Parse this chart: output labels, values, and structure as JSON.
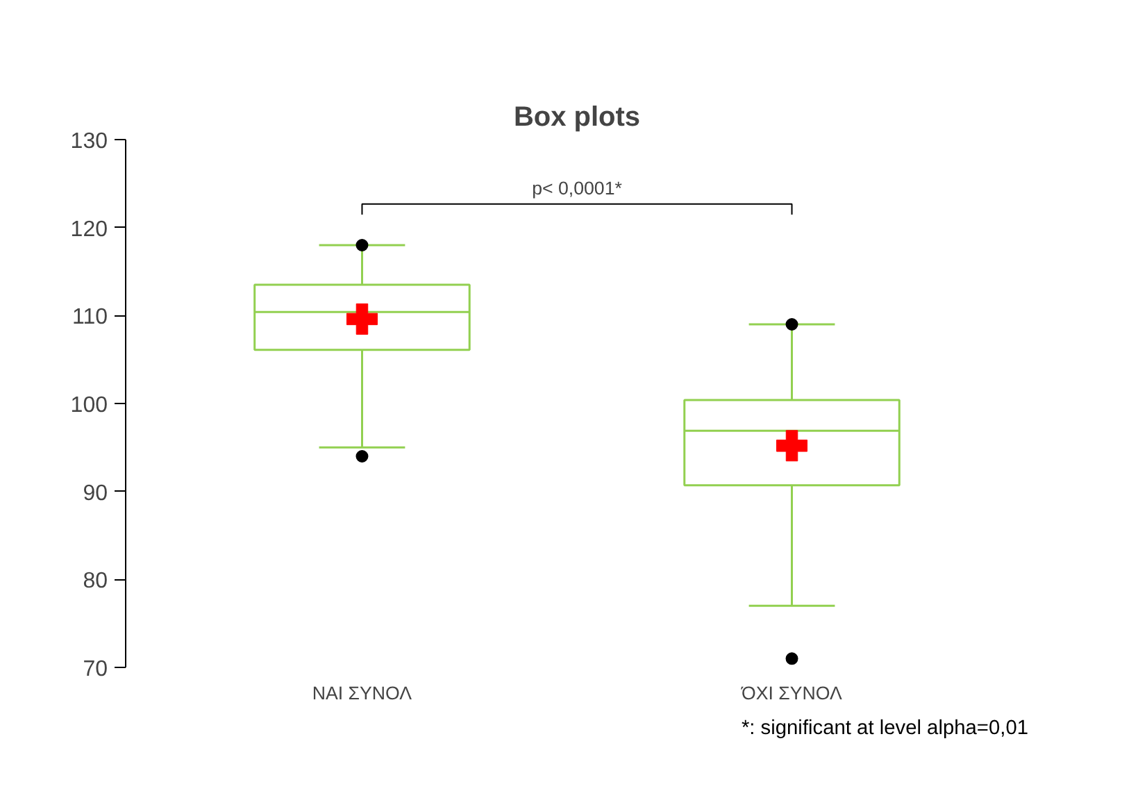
{
  "chart_data": {
    "type": "box",
    "title": "Box plots",
    "categories": [
      "ΝΑΙ ΣΥΝΟΛ",
      "ΌΧΙ ΣΥΝΟΛ"
    ],
    "boxes": [
      {
        "low": 95,
        "q1": 106.1,
        "median": 110.4,
        "q3": 113.5,
        "high": 118,
        "mean": 109.6,
        "outliers": [
          94,
          118
        ]
      },
      {
        "low": 77,
        "q1": 90.7,
        "median": 96.9,
        "q3": 100.4,
        "high": 109,
        "mean": 95.2,
        "outliers": [
          71,
          109
        ]
      }
    ],
    "color": "#92d050",
    "ylim": [
      70,
      130
    ],
    "yticks": [
      70,
      80,
      90,
      100,
      110,
      120,
      130
    ],
    "grid": false,
    "annotations": [
      "p< 0,0001*",
      "*: significant at level alpha=0,01"
    ]
  }
}
